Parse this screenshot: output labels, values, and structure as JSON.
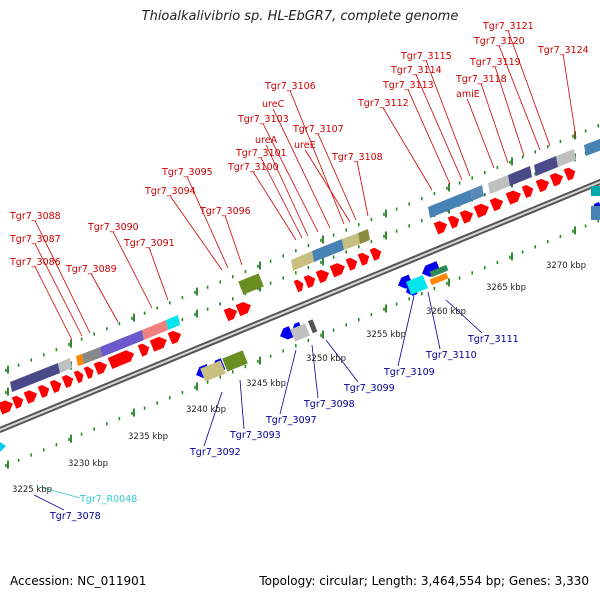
{
  "title": "Thioalkalivibrio sp. HL-EbGR7, complete genome",
  "footer": {
    "accession_label": "Accession:",
    "accession": "NC_011901",
    "topology_label": "Topology:",
    "topology": "circular",
    "length_label": "Length:",
    "length": "3,464,554 bp",
    "genes_label": "Genes:",
    "genes": "3,330"
  },
  "colors": {
    "forward_label": "#cc0000",
    "reverse_label": "#000099",
    "rna_label": "#33cccc",
    "forward_gene": "#ff0000",
    "reverse_gene": "#0000ee",
    "backbone": "#888888",
    "tick": "#2a8a2a"
  },
  "scale": [
    {
      "label": "3225 kbp"
    },
    {
      "label": "3230 kbp"
    },
    {
      "label": "3235 kbp"
    },
    {
      "label": "3240 kbp"
    },
    {
      "label": "3245 kbp"
    },
    {
      "label": "3250 kbp"
    },
    {
      "label": "3255 kbp"
    },
    {
      "label": "3260 kbp"
    },
    {
      "label": "3265 kbp"
    },
    {
      "label": "3270 kbp"
    }
  ],
  "forward_genes": [
    "Tgr7_3086",
    "Tgr7_3087",
    "Tgr7_3088",
    "Tgr7_3089",
    "Tgr7_3090",
    "Tgr7_3091",
    "Tgr7_3094",
    "Tgr7_3095",
    "Tgr7_3096",
    "Tgr7_3100",
    "Tgr7_3101",
    "ureA",
    "Tgr7_3103",
    "ureC",
    "Tgr7_3106",
    "ureE",
    "Tgr7_3107",
    "Tgr7_3108",
    "Tgr7_3112",
    "Tgr7_3113",
    "Tgr7_3114",
    "Tgr7_3115",
    "amiE",
    "Tgr7_3118",
    "Tgr7_3119",
    "Tgr7_3120",
    "Tgr7_3121",
    "Tgr7_3124"
  ],
  "reverse_genes": [
    "Tgr7_3078",
    "Tgr7_3092",
    "Tgr7_3093",
    "Tgr7_3097",
    "Tgr7_3098",
    "Tgr7_3099",
    "Tgr7_3109",
    "Tgr7_3110",
    "Tgr7_3111"
  ],
  "rna_genes": [
    "Tgr7_R0048"
  ]
}
